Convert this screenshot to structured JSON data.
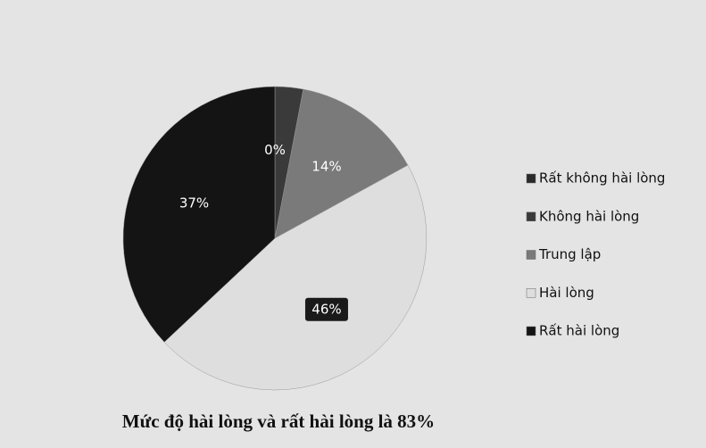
{
  "chart_data": {
    "type": "pie",
    "title": "Mức độ hài lòng và rất hài lòng là 83%",
    "categories": [
      "Rất không hài lòng",
      "Không hài lòng",
      "Trung lập",
      "Hài lòng",
      "Rất hài lòng"
    ],
    "values": [
      0,
      3,
      14,
      46,
      37
    ],
    "value_labels": [
      "0%",
      null,
      "14%",
      "46%",
      "37%"
    ],
    "colors": [
      "#2a2a2a",
      "#3a3a3a",
      "#7a7a7a",
      "#dedede",
      "#141414"
    ],
    "legend": "right"
  }
}
